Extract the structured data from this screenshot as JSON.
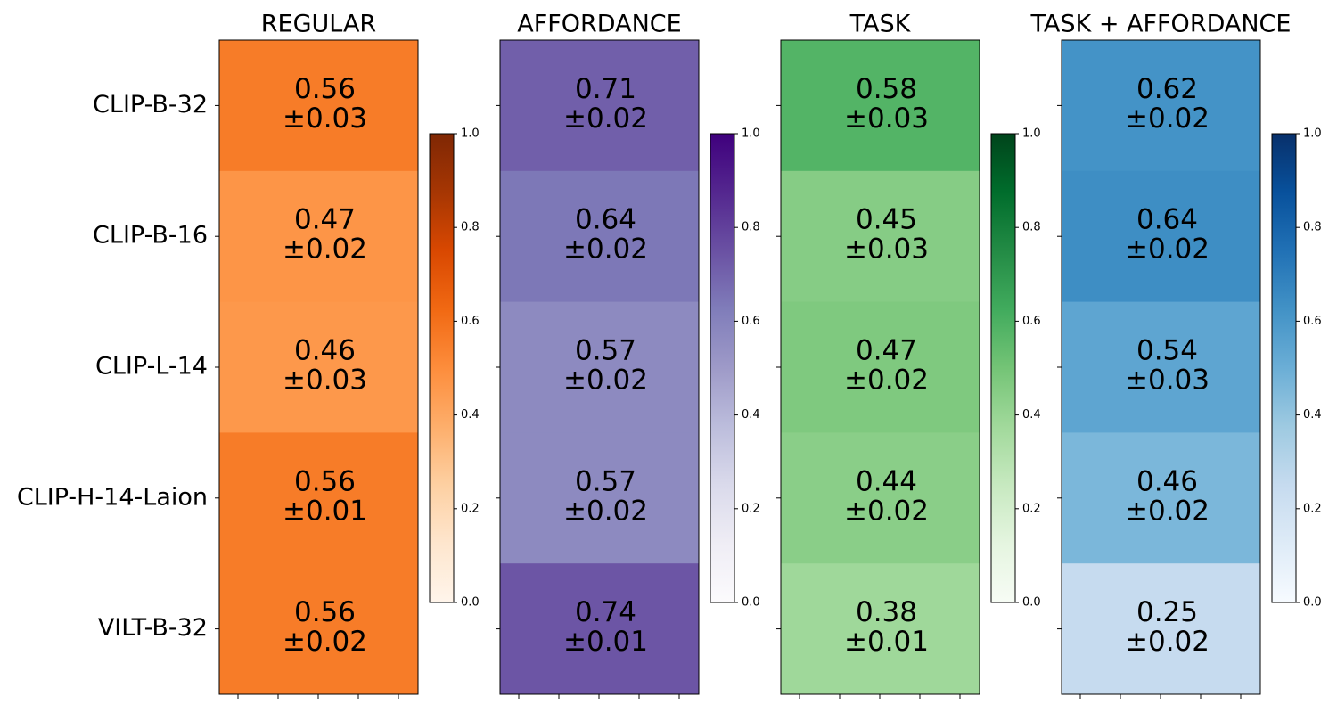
{
  "chart_data": {
    "type": "heatmap",
    "row_labels": [
      "CLIP-B-32",
      "CLIP-B-16",
      "CLIP-L-14",
      "CLIP-H-14-Laion",
      "VILT-B-32"
    ],
    "color_range": [
      0,
      1
    ],
    "colorbar_ticks": [
      "0.0",
      "0.2",
      "0.4",
      "0.6",
      "0.8",
      "1.0"
    ],
    "panels": [
      {
        "title": "REGULAR",
        "colormap": "Oranges",
        "colormap_stops": [
          "#fff5eb",
          "#fee6ce",
          "#fdd0a2",
          "#fdae6b",
          "#fd8d3c",
          "#f16913",
          "#d94801",
          "#a63603",
          "#7f2704"
        ],
        "values": [
          0.56,
          0.47,
          0.46,
          0.56,
          0.56
        ],
        "labels": [
          "0.56",
          "0.47",
          "0.46",
          "0.56",
          "0.56"
        ],
        "errors": [
          "±0.03",
          "±0.02",
          "±0.03",
          "±0.01",
          "±0.02"
        ]
      },
      {
        "title": "AFFORDANCE",
        "colormap": "Purples",
        "colormap_stops": [
          "#fcfbfd",
          "#efedf5",
          "#dadaeb",
          "#bcbddc",
          "#9e9ac8",
          "#807dba",
          "#6a51a3",
          "#54278f",
          "#3f007d"
        ],
        "values": [
          0.71,
          0.64,
          0.57,
          0.57,
          0.74
        ],
        "labels": [
          "0.71",
          "0.64",
          "0.57",
          "0.57",
          "0.74"
        ],
        "errors": [
          "±0.02",
          "±0.02",
          "±0.02",
          "±0.02",
          "±0.01"
        ]
      },
      {
        "title": "TASK",
        "colormap": "Greens",
        "colormap_stops": [
          "#f7fcf5",
          "#e5f5e0",
          "#c7e9c0",
          "#a1d99b",
          "#74c476",
          "#41ab5d",
          "#238b45",
          "#006d2c",
          "#00441b"
        ],
        "values": [
          0.58,
          0.45,
          0.47,
          0.44,
          0.38
        ],
        "labels": [
          "0.58",
          "0.45",
          "0.47",
          "0.44",
          "0.38"
        ],
        "errors": [
          "±0.03",
          "±0.03",
          "±0.02",
          "±0.02",
          "±0.01"
        ]
      },
      {
        "title": "TASK + AFFORDANCE",
        "colormap": "Blues",
        "colormap_stops": [
          "#f7fbff",
          "#deebf7",
          "#c6dbef",
          "#9ecae1",
          "#6baed6",
          "#4292c6",
          "#2171b5",
          "#08519c",
          "#08306b"
        ],
        "values": [
          0.62,
          0.64,
          0.54,
          0.46,
          0.25
        ],
        "labels": [
          "0.62",
          "0.64",
          "0.54",
          "0.46",
          "0.25"
        ],
        "errors": [
          "±0.02",
          "±0.02",
          "±0.03",
          "±0.02",
          "±0.02"
        ]
      }
    ]
  }
}
